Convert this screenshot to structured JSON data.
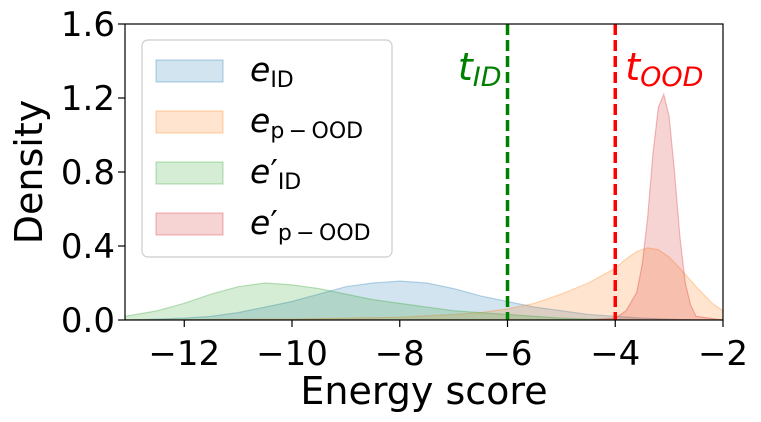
{
  "chart_data": {
    "type": "area",
    "title": "",
    "xlabel": "Energy score",
    "ylabel": "Density",
    "xlim": [
      -13.1,
      -2
    ],
    "ylim": [
      0,
      1.6
    ],
    "xticks": [
      -12,
      -10,
      -8,
      -6,
      -4,
      -2
    ],
    "xtick_labels": [
      "−12",
      "−10",
      "−8",
      "−6",
      "−4",
      "−2"
    ],
    "yticks": [
      0,
      0.4,
      0.8,
      1.2,
      1.6
    ],
    "ytick_labels": [
      "0.0",
      "0.4",
      "0.8",
      "1.2",
      "1.6"
    ],
    "grid": false,
    "legend_position": "top-left",
    "series": [
      {
        "name": "e_ID",
        "legend_base": "e",
        "legend_prime": "",
        "legend_sub": "ID",
        "color": "#1f77b4",
        "x": [
          -13.1,
          -12.5,
          -12.0,
          -11.5,
          -11.0,
          -10.5,
          -10.0,
          -9.5,
          -9.0,
          -8.5,
          -8.0,
          -7.5,
          -7.0,
          -6.5,
          -6.0,
          -5.5,
          -5.0,
          -4.5,
          -4.0,
          -3.5,
          -3.0,
          -2.5,
          -2.0
        ],
        "y": [
          0.0,
          0.005,
          0.01,
          0.02,
          0.04,
          0.07,
          0.1,
          0.14,
          0.18,
          0.2,
          0.21,
          0.2,
          0.17,
          0.13,
          0.1,
          0.07,
          0.05,
          0.03,
          0.02,
          0.01,
          0.005,
          0.0,
          0.0
        ]
      },
      {
        "name": "e_p-OOD",
        "legend_base": "e",
        "legend_prime": "",
        "legend_sub": "p − OOD",
        "color": "#ff7f0e",
        "x": [
          -13.1,
          -10.0,
          -9.0,
          -8.0,
          -7.0,
          -6.5,
          -6.0,
          -5.5,
          -5.0,
          -4.5,
          -4.0,
          -3.8,
          -3.6,
          -3.4,
          -3.2,
          -3.0,
          -2.8,
          -2.5,
          -2.2,
          -2.0
        ],
        "y": [
          0.0,
          0.005,
          0.01,
          0.015,
          0.03,
          0.04,
          0.06,
          0.09,
          0.14,
          0.2,
          0.28,
          0.33,
          0.37,
          0.39,
          0.38,
          0.34,
          0.28,
          0.18,
          0.09,
          0.05
        ]
      },
      {
        "name": "e'_ID",
        "legend_base": "e",
        "legend_prime": "′",
        "legend_sub": "ID",
        "color": "#2ca02c",
        "x": [
          -13.1,
          -12.5,
          -12.0,
          -11.5,
          -11.0,
          -10.5,
          -10.0,
          -9.5,
          -9.0,
          -8.5,
          -8.0,
          -7.5,
          -7.0,
          -6.5,
          -6.0,
          -5.5,
          -5.0,
          -4.5,
          -4.0,
          -3.5,
          -3.0,
          -2.0
        ],
        "y": [
          0.02,
          0.05,
          0.09,
          0.14,
          0.18,
          0.2,
          0.19,
          0.17,
          0.14,
          0.11,
          0.09,
          0.07,
          0.05,
          0.04,
          0.03,
          0.02,
          0.01,
          0.005,
          0.002,
          0.0,
          0.0,
          0.0
        ]
      },
      {
        "name": "e'_p-OOD",
        "legend_base": "e",
        "legend_prime": "′",
        "legend_sub": "p − OOD",
        "color": "#d62728",
        "x": [
          -13.1,
          -5.0,
          -4.5,
          -4.0,
          -3.8,
          -3.6,
          -3.5,
          -3.4,
          -3.3,
          -3.2,
          -3.1,
          -3.0,
          -2.9,
          -2.8,
          -2.7,
          -2.6,
          -2.5,
          -2.0
        ],
        "y": [
          0.0,
          0.0,
          0.0,
          0.01,
          0.05,
          0.15,
          0.3,
          0.55,
          0.9,
          1.15,
          1.22,
          1.1,
          0.8,
          0.45,
          0.2,
          0.08,
          0.02,
          0.0
        ]
      }
    ],
    "thresholds": [
      {
        "label_base": "t",
        "label_sub": "ID",
        "x": -6,
        "color": "#008000"
      },
      {
        "label_base": "t",
        "label_sub": "OOD",
        "x": -4,
        "color": "#ff0000"
      }
    ]
  }
}
